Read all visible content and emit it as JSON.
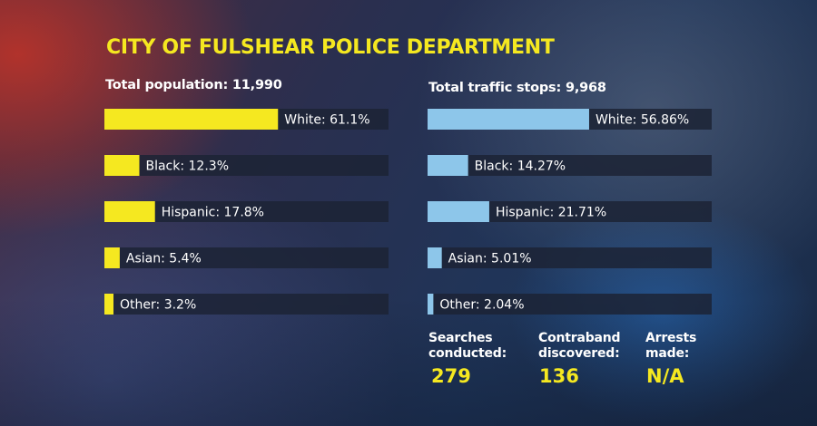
{
  "title": "CITY OF FULSHEAR POLICE DEPARTMENT",
  "chart_data": [
    {
      "type": "bar",
      "orientation": "horizontal",
      "title": "Total population: 11,990",
      "categories": [
        "White",
        "Black",
        "Hispanic",
        "Asian",
        "Other"
      ],
      "values": [
        61.1,
        12.3,
        17.8,
        5.4,
        3.2
      ],
      "labels": [
        "White: 61.1%",
        "Black: 12.3%",
        "Hispanic: 17.8%",
        "Asian: 5.4%",
        "Other: 3.2%"
      ],
      "unit": "%",
      "xlim": [
        0,
        100
      ],
      "color": "#f5e820",
      "track_color": "#1c2335"
    },
    {
      "type": "bar",
      "orientation": "horizontal",
      "title": "Total traffic stops: 9,968",
      "categories": [
        "White",
        "Black",
        "Hispanic",
        "Asian",
        "Other"
      ],
      "values": [
        56.86,
        14.27,
        21.71,
        5.01,
        2.04
      ],
      "labels": [
        "White: 56.86%",
        "Black: 14.27%",
        "Hispanic: 21.71%",
        "Asian: 5.01%",
        "Other: 2.04%"
      ],
      "unit": "%",
      "xlim": [
        0,
        100
      ],
      "color": "#8dc6ea",
      "track_color": "#1c2335"
    }
  ],
  "stats": [
    {
      "label": "Searches\nconducted:",
      "value": "279"
    },
    {
      "label": "Contraband\ndiscovered:",
      "value": "136"
    },
    {
      "label": "Arrests\nmade:",
      "value": "N/A"
    }
  ]
}
